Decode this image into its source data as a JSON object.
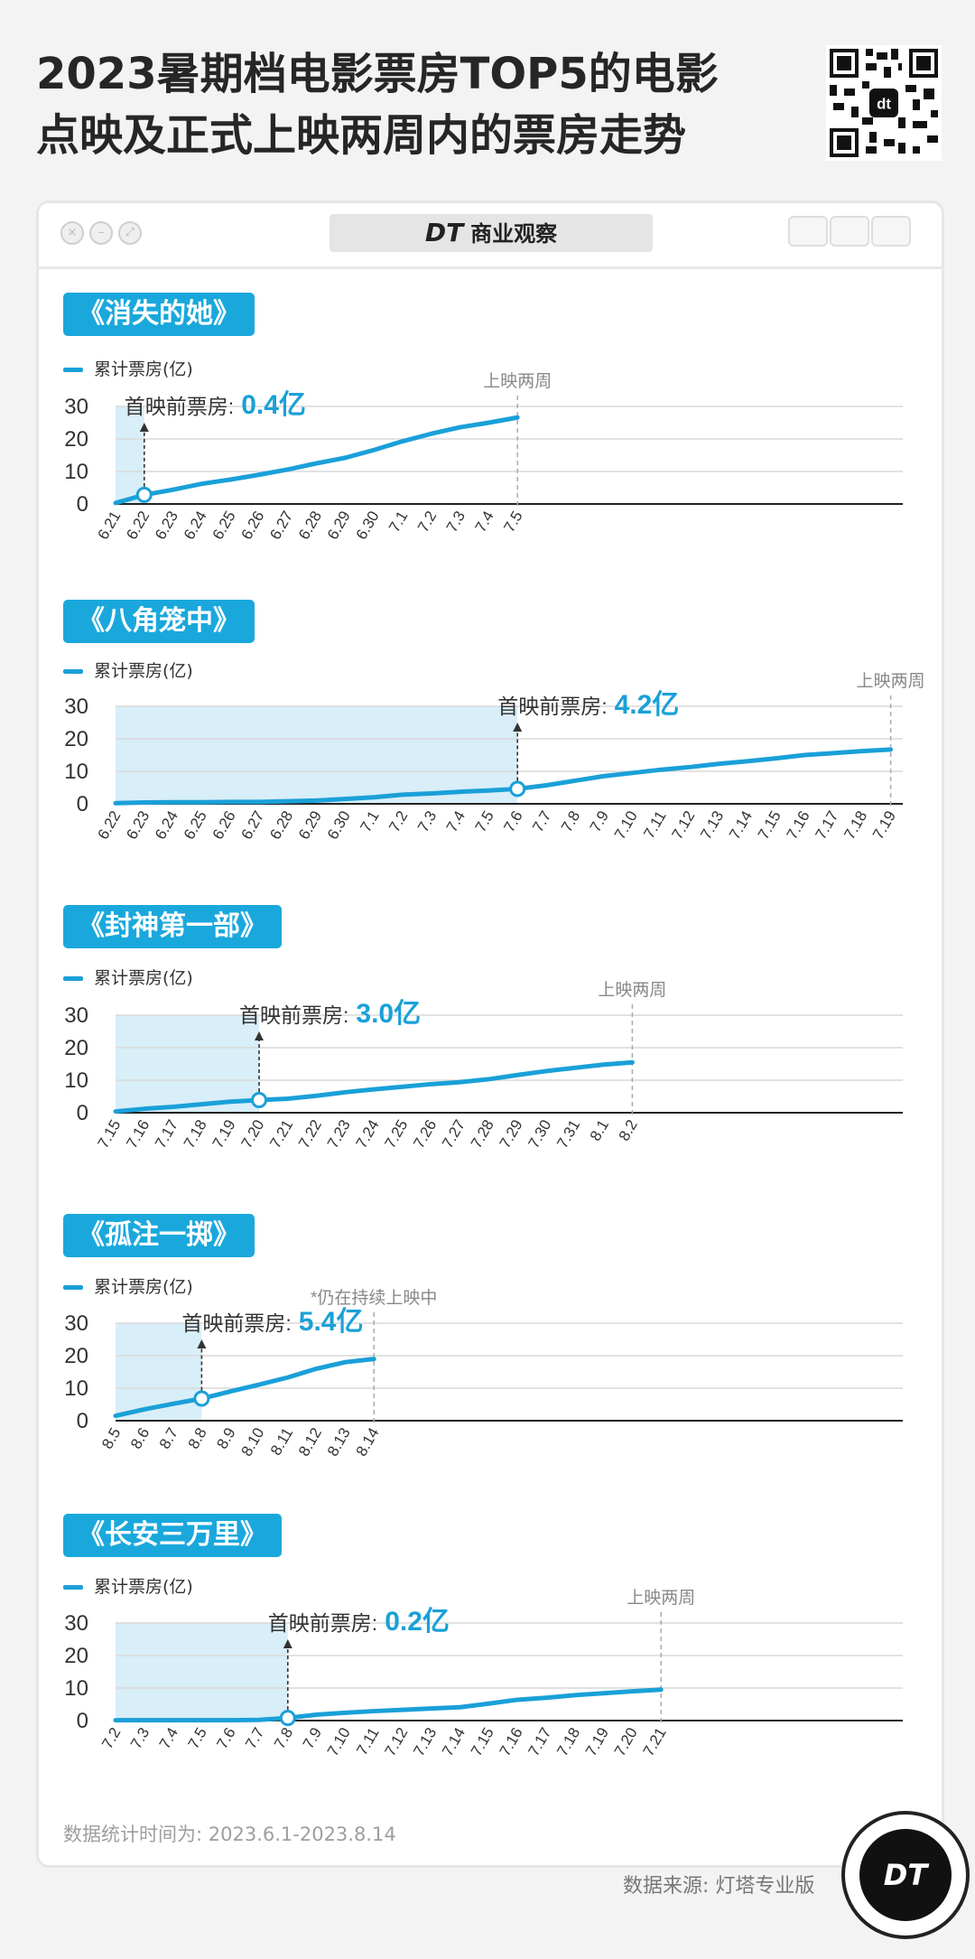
{
  "title_line1": "2023暑期档电影票房TOP5的电影",
  "title_line2": "点映及正式上映两周内的票房走势",
  "brand": {
    "logo": "DT",
    "name": "商业观察"
  },
  "footnote": "数据统计时间为: 2023.6.1-2023.8.14",
  "source": "数据来源: 灯塔专业版",
  "badge_text": "DT",
  "colors": {
    "line": "#1aa0d8",
    "tag": "#1aa8dc",
    "shade": "#d8eef8",
    "label_value": "#1aa0d8",
    "grid": "#d9d9d9"
  },
  "chart_data": [
    {
      "type": "line",
      "title": "《消失的她》",
      "legend": "累计票房(亿)",
      "categories": [
        "6.21",
        "6.22",
        "6.23",
        "6.24",
        "6.25",
        "6.26",
        "6.27",
        "6.28",
        "6.29",
        "6.30",
        "7.1",
        "7.2",
        "7.3",
        "7.4",
        "7.5"
      ],
      "values": [
        0.3,
        2.8,
        4.4,
        6.2,
        7.5,
        9.0,
        10.6,
        12.5,
        14.2,
        16.6,
        19.3,
        21.6,
        23.6,
        25.0,
        26.6
      ],
      "ylim": [
        0,
        30
      ],
      "yticks": [
        0,
        10,
        20,
        30
      ],
      "premiere_index": 1,
      "premiere_label": "首映前票房:",
      "premiere_value": "0.4亿",
      "end_index": 14,
      "end_label": "上映两周",
      "shade_end_index": 1
    },
    {
      "type": "line",
      "title": "《八角笼中》",
      "legend": "累计票房(亿)",
      "categories": [
        "6.22",
        "6.23",
        "6.24",
        "6.25",
        "6.26",
        "6.27",
        "6.28",
        "6.29",
        "6.30",
        "7.1",
        "7.2",
        "7.3",
        "7.4",
        "7.5",
        "7.6",
        "7.7",
        "7.8",
        "7.9",
        "7.10",
        "7.11",
        "7.12",
        "7.13",
        "7.14",
        "7.15",
        "7.16",
        "7.17",
        "7.18",
        "7.19"
      ],
      "values": [
        0.2,
        0.4,
        0.5,
        0.5,
        0.6,
        0.6,
        0.8,
        1.0,
        1.5,
        2.0,
        2.8,
        3.2,
        3.7,
        4.1,
        4.6,
        5.7,
        7.1,
        8.5,
        9.5,
        10.5,
        11.3,
        12.3,
        13.1,
        14.0,
        15.0,
        15.6,
        16.2,
        16.7
      ],
      "ylim": [
        0,
        30
      ],
      "yticks": [
        0,
        10,
        20,
        30
      ],
      "premiere_index": 14,
      "premiere_label": "首映前票房:",
      "premiere_value": "4.2亿",
      "end_index": 27,
      "end_label": "上映两周",
      "shade_end_index": 14
    },
    {
      "type": "line",
      "title": "《封神第一部》",
      "legend": "累计票房(亿)",
      "categories": [
        "7.15",
        "7.16",
        "7.17",
        "7.18",
        "7.19",
        "7.20",
        "7.21",
        "7.22",
        "7.23",
        "7.24",
        "7.25",
        "7.26",
        "7.27",
        "7.28",
        "7.29",
        "7.30",
        "7.31",
        "8.1",
        "8.2"
      ],
      "values": [
        0.4,
        1.2,
        1.8,
        2.6,
        3.4,
        3.9,
        4.3,
        5.2,
        6.3,
        7.2,
        8.0,
        8.8,
        9.4,
        10.3,
        11.6,
        12.8,
        13.8,
        14.8,
        15.5
      ],
      "ylim": [
        0,
        30
      ],
      "yticks": [
        0,
        10,
        20,
        30
      ],
      "premiere_index": 5,
      "premiere_label": "首映前票房:",
      "premiere_value": "3.0亿",
      "end_index": 18,
      "end_label": "上映两周",
      "shade_end_index": 5
    },
    {
      "type": "line",
      "title": "《孤注一掷》",
      "legend": "累计票房(亿)",
      "categories": [
        "8.5",
        "8.6",
        "8.7",
        "8.8",
        "8.9",
        "8.10",
        "8.11",
        "8.12",
        "8.13",
        "8.14"
      ],
      "values": [
        1.5,
        3.5,
        5.2,
        6.8,
        9.0,
        11.1,
        13.3,
        16.0,
        18.0,
        19.0
      ],
      "ylim": [
        0,
        30
      ],
      "yticks": [
        0,
        10,
        20,
        30
      ],
      "premiere_index": 3,
      "premiere_label": "首映前票房:",
      "premiere_value": "5.4亿",
      "end_index": 9,
      "end_label": "*仍在持续上映中",
      "shade_end_index": 3
    },
    {
      "type": "line",
      "title": "《长安三万里》",
      "legend": "累计票房(亿)",
      "categories": [
        "7.2",
        "7.3",
        "7.4",
        "7.5",
        "7.6",
        "7.7",
        "7.8",
        "7.9",
        "7.10",
        "7.11",
        "7.12",
        "7.13",
        "7.14",
        "7.15",
        "7.16",
        "7.17",
        "7.18",
        "7.19",
        "7.20",
        "7.21"
      ],
      "values": [
        0.1,
        0.1,
        0.1,
        0.1,
        0.1,
        0.2,
        0.8,
        1.8,
        2.4,
        2.9,
        3.3,
        3.7,
        4.1,
        5.2,
        6.4,
        7.0,
        7.8,
        8.4,
        9.0,
        9.5
      ],
      "ylim": [
        0,
        30
      ],
      "yticks": [
        0,
        10,
        20,
        30
      ],
      "premiere_index": 6,
      "premiere_label": "首映前票房:",
      "premiere_value": "0.2亿",
      "end_index": 19,
      "end_label": "上映两周",
      "shade_end_index": 6
    }
  ]
}
